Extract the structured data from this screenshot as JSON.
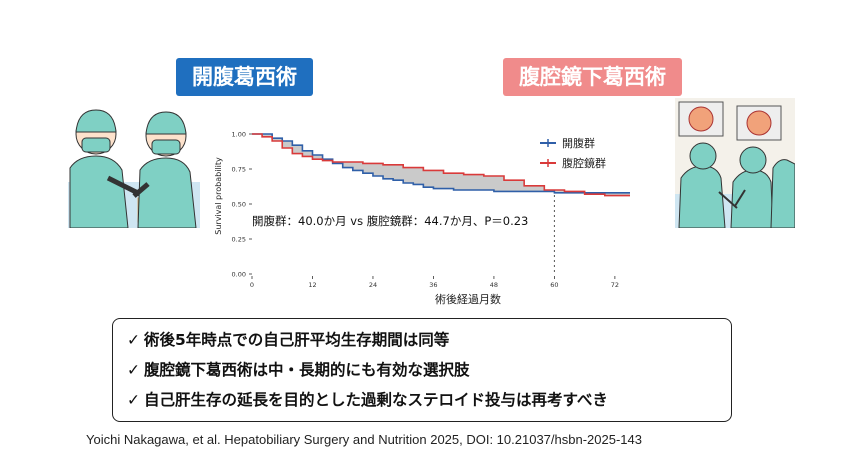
{
  "labels": {
    "open_surgery": "開腹葛西術",
    "laparoscopic_surgery": "腹腔鏡下葛西術"
  },
  "chart_data": {
    "type": "line",
    "ylabel": "Survival probability",
    "xlabel": "術後経過月数",
    "xlim": [
      0,
      75
    ],
    "ylim": [
      0,
      1.0
    ],
    "x_ticks": [
      0,
      12,
      24,
      36,
      48,
      60,
      72
    ],
    "y_ticks": [
      "0.00",
      "0.25",
      "0.50",
      "0.75",
      "1.00"
    ],
    "reference_line_x": 60,
    "annotation": "開腹群：40.0か月 vs 腹腔鏡群：44.7か月、P＝0.23",
    "legend_position": "top-right",
    "series": [
      {
        "name": "開腹群",
        "color": "#2f5fa8",
        "points": [
          [
            0,
            1.0
          ],
          [
            2,
            1.0
          ],
          [
            4,
            0.97
          ],
          [
            6,
            0.95
          ],
          [
            8,
            0.92
          ],
          [
            10,
            0.88
          ],
          [
            12,
            0.85
          ],
          [
            14,
            0.82
          ],
          [
            16,
            0.79
          ],
          [
            18,
            0.76
          ],
          [
            20,
            0.74
          ],
          [
            22,
            0.72
          ],
          [
            24,
            0.7
          ],
          [
            26,
            0.68
          ],
          [
            28,
            0.67
          ],
          [
            30,
            0.65
          ],
          [
            32,
            0.64
          ],
          [
            34,
            0.62
          ],
          [
            36,
            0.61
          ],
          [
            40,
            0.6
          ],
          [
            44,
            0.6
          ],
          [
            48,
            0.59
          ],
          [
            54,
            0.59
          ],
          [
            60,
            0.58
          ],
          [
            66,
            0.58
          ],
          [
            72,
            0.58
          ],
          [
            75,
            0.58
          ]
        ]
      },
      {
        "name": "腹腔鏡群",
        "color": "#d93a3a",
        "points": [
          [
            0,
            1.0
          ],
          [
            2,
            0.98
          ],
          [
            4,
            0.95
          ],
          [
            6,
            0.9
          ],
          [
            8,
            0.86
          ],
          [
            10,
            0.84
          ],
          [
            12,
            0.82
          ],
          [
            14,
            0.81
          ],
          [
            16,
            0.8
          ],
          [
            18,
            0.8
          ],
          [
            22,
            0.79
          ],
          [
            26,
            0.78
          ],
          [
            30,
            0.76
          ],
          [
            34,
            0.74
          ],
          [
            38,
            0.72
          ],
          [
            42,
            0.71
          ],
          [
            46,
            0.7
          ],
          [
            50,
            0.67
          ],
          [
            54,
            0.63
          ],
          [
            58,
            0.6
          ],
          [
            62,
            0.59
          ],
          [
            66,
            0.57
          ],
          [
            70,
            0.56
          ],
          [
            75,
            0.56
          ]
        ]
      }
    ]
  },
  "summary_points": [
    "術後5年時点での自己肝平均生存期間は同等",
    "腹腔鏡下葛西術は中・長期的にも有効な選択肢",
    "自己肝生存の延長を目的とした過剰なステロイド投与は再考すべき"
  ],
  "check_mark": "✓",
  "citation": "Yoichi Nakagawa, et al. Hepatobiliary Surgery and Nutrition 2025, DOI: 10.21037/hsbn-2025-143"
}
